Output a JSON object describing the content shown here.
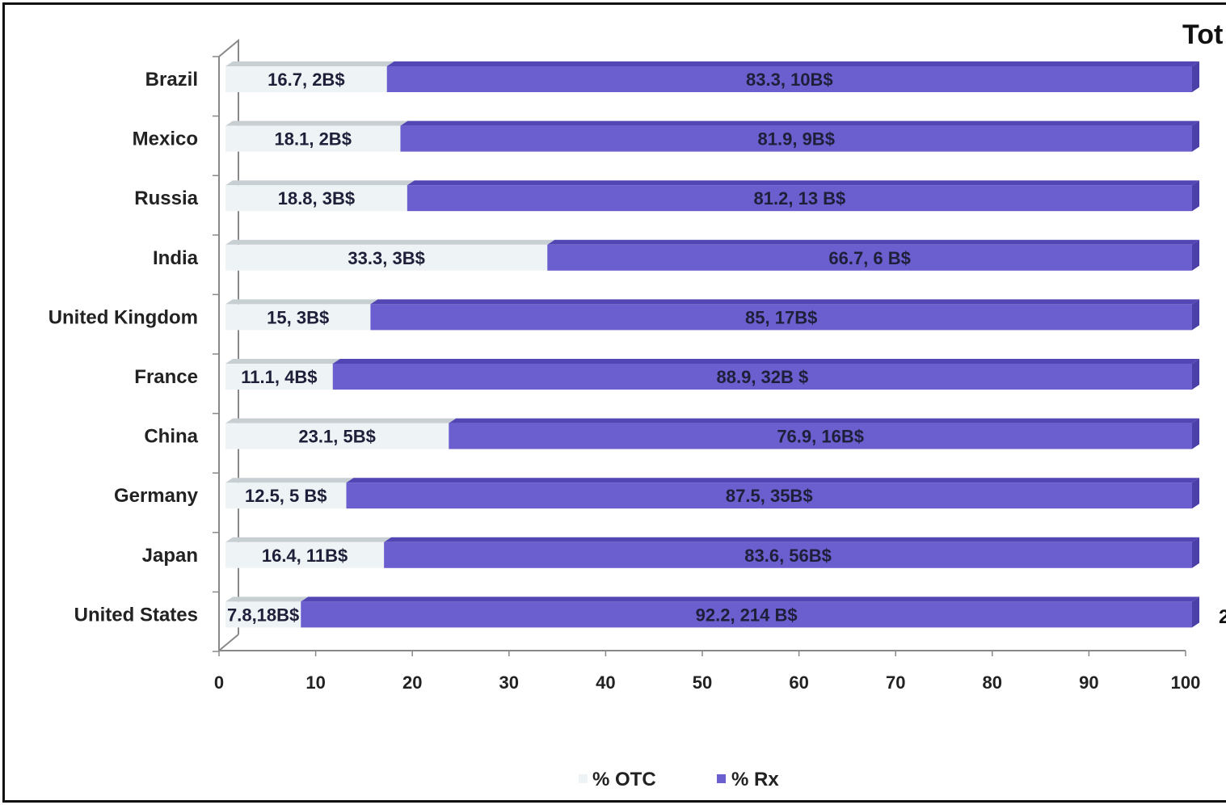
{
  "chart_data": {
    "type": "bar",
    "orientation": "horizontal",
    "stacked": true,
    "title": "Tot",
    "categories": [
      "Brazil",
      "Mexico",
      "Russia",
      "India",
      "United Kingdom",
      "France",
      "China",
      "Germany",
      "Japan",
      "United States"
    ],
    "series": [
      {
        "name": "% OTC",
        "color": "#eef3f5",
        "values": [
          16.7,
          18.1,
          18.8,
          33.3,
          15,
          11.1,
          23.1,
          12.5,
          16.4,
          7.8
        ],
        "labels": [
          "16.7, 2B$",
          "18.1, 2B$",
          "18.8, 3B$",
          "33.3, 3B$",
          "15, 3B$",
          "11.1, 4B$",
          "23.1, 5B$",
          "12.5, 5 B$",
          "16.4, 11B$",
          "7.8,18B$"
        ]
      },
      {
        "name": "% Rx",
        "color": "#6b5fd0",
        "values": [
          83.3,
          81.9,
          81.2,
          66.7,
          85,
          88.9,
          76.9,
          87.5,
          83.6,
          92.2
        ],
        "labels": [
          "83.3,  10B$",
          "81.9,  9B$",
          "81.2,  13 B$",
          "66.7,  6 B$",
          "85, 17B$",
          "88.9, 32B $",
          "76.9, 16B$",
          "87.5,  35B$",
          "83.6,  56B$",
          "92.2,  214 B$"
        ]
      }
    ],
    "side_label": "2",
    "xlim": [
      0,
      100
    ],
    "xticks": [
      "0",
      "10",
      "20",
      "30",
      "40",
      "50",
      "60",
      "70",
      "80",
      "90",
      "100"
    ],
    "grid": false,
    "legend": "bottom"
  }
}
